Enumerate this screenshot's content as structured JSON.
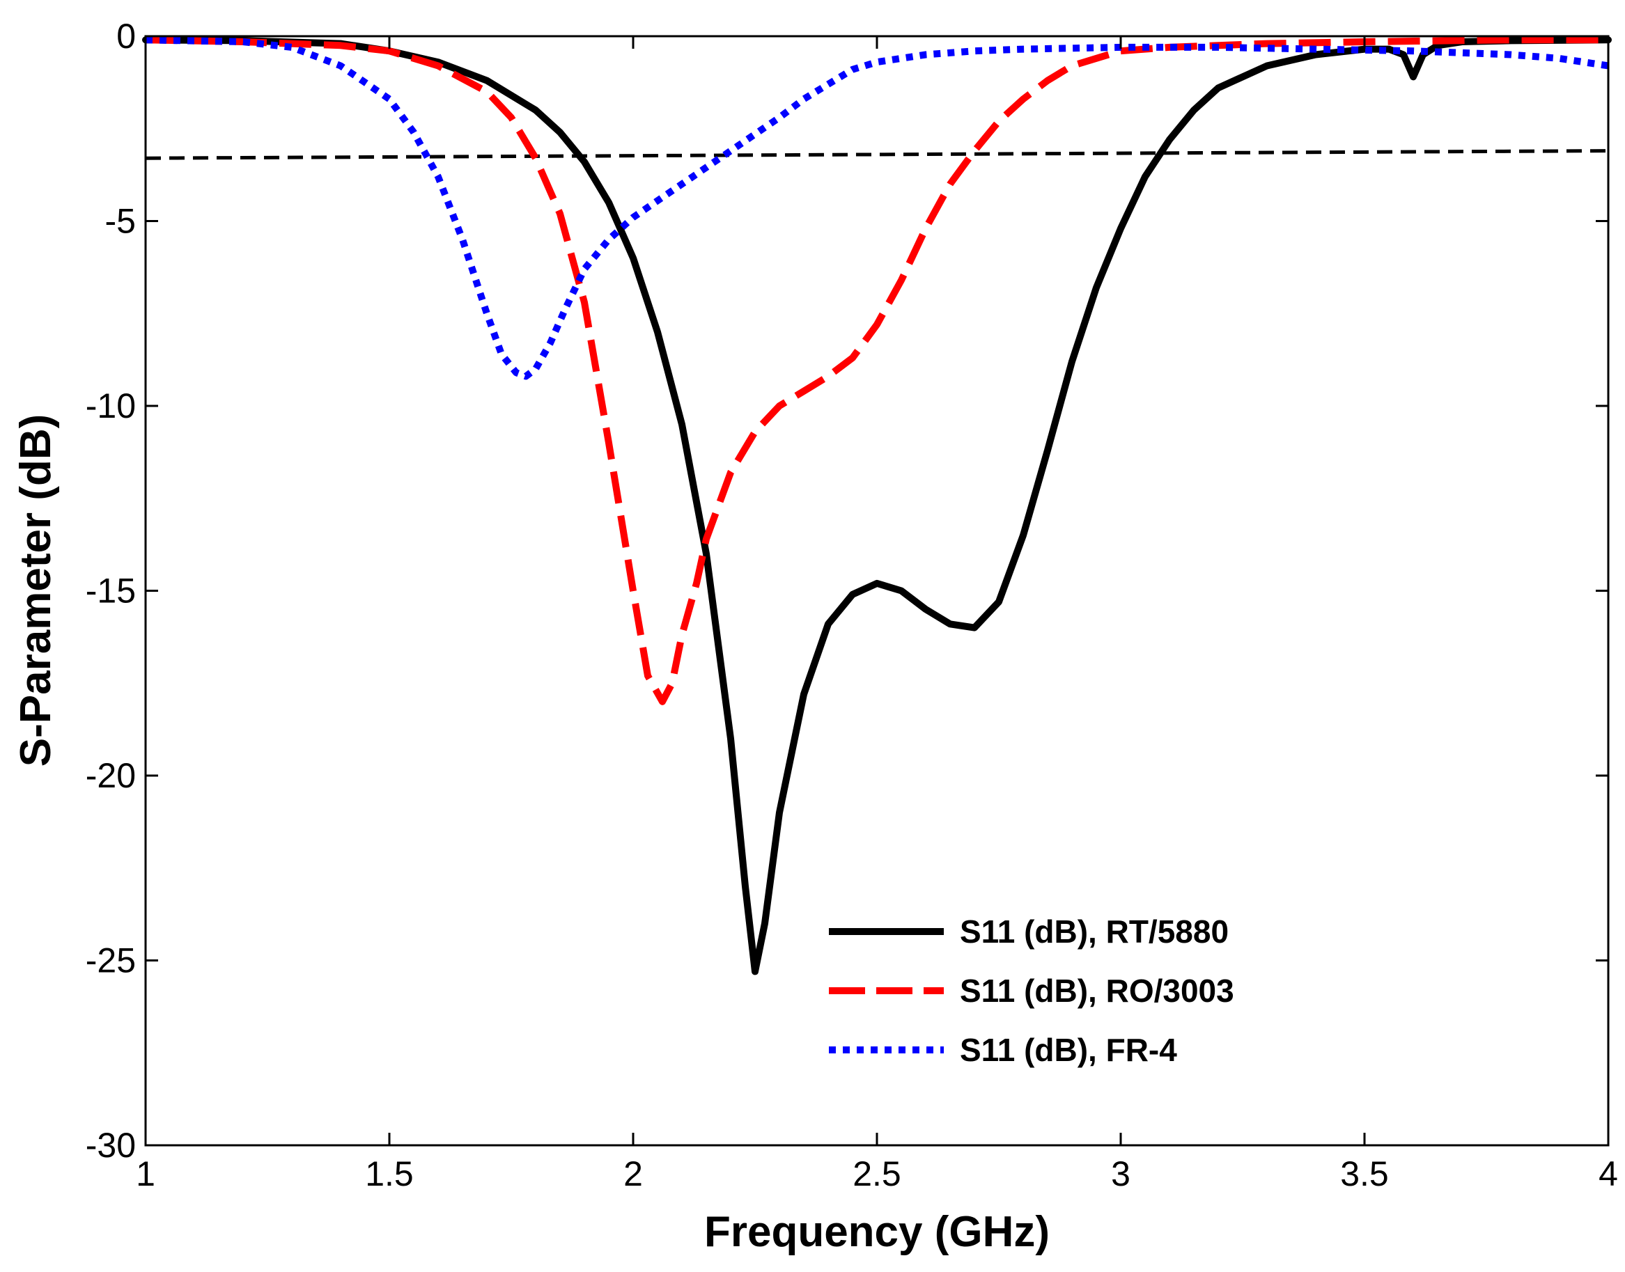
{
  "chart_data": {
    "type": "line",
    "title": "",
    "xlabel": "Frequency (GHz)",
    "ylabel": "S-Parameter (dB)",
    "xlim": [
      1,
      4
    ],
    "ylim": [
      -30,
      0
    ],
    "grid": false,
    "legend_position": "bottom-center",
    "x_ticks": [
      {
        "value": 1,
        "label": "1"
      },
      {
        "value": 1.5,
        "label": "1.5"
      },
      {
        "value": 2,
        "label": "2"
      },
      {
        "value": 2.5,
        "label": "2.5"
      },
      {
        "value": 3,
        "label": "3"
      },
      {
        "value": 3.5,
        "label": "3.5"
      },
      {
        "value": 4,
        "label": "4"
      }
    ],
    "y_ticks": [
      {
        "value": 0,
        "label": "0"
      },
      {
        "value": -5,
        "label": "-5"
      },
      {
        "value": -10,
        "label": "-10"
      },
      {
        "value": -15,
        "label": "-15"
      },
      {
        "value": -20,
        "label": "-20"
      },
      {
        "value": -25,
        "label": "-25"
      },
      {
        "value": -30,
        "label": "-30"
      }
    ],
    "series": [
      {
        "name": "S11 (dB), RT/5880",
        "color": "#000000",
        "style": "solid",
        "x": [
          1.0,
          1.2,
          1.4,
          1.5,
          1.6,
          1.7,
          1.8,
          1.85,
          1.9,
          1.95,
          2.0,
          2.05,
          2.1,
          2.15,
          2.2,
          2.23,
          2.25,
          2.27,
          2.3,
          2.35,
          2.4,
          2.45,
          2.5,
          2.55,
          2.6,
          2.65,
          2.7,
          2.75,
          2.8,
          2.85,
          2.9,
          2.95,
          3.0,
          3.05,
          3.1,
          3.15,
          3.2,
          3.3,
          3.4,
          3.5,
          3.55,
          3.58,
          3.6,
          3.62,
          3.65,
          3.7,
          3.8,
          4.0
        ],
        "y": [
          -0.1,
          -0.12,
          -0.2,
          -0.4,
          -0.7,
          -1.2,
          -2.0,
          -2.6,
          -3.4,
          -4.5,
          -6.0,
          -8.0,
          -10.5,
          -14.0,
          -19.0,
          -23.0,
          -25.3,
          -24.0,
          -21.0,
          -17.8,
          -15.9,
          -15.1,
          -14.8,
          -15.0,
          -15.5,
          -15.9,
          -16.0,
          -15.3,
          -13.5,
          -11.2,
          -8.8,
          -6.8,
          -5.2,
          -3.8,
          -2.8,
          -2.0,
          -1.4,
          -0.8,
          -0.5,
          -0.35,
          -0.35,
          -0.5,
          -1.1,
          -0.5,
          -0.25,
          -0.15,
          -0.12,
          -0.1
        ]
      },
      {
        "name": "S11 (dB), RO/3003",
        "color": "#ff0000",
        "style": "dashed",
        "x": [
          1.0,
          1.2,
          1.4,
          1.5,
          1.6,
          1.7,
          1.75,
          1.8,
          1.85,
          1.9,
          1.95,
          2.0,
          2.03,
          2.06,
          2.08,
          2.1,
          2.13,
          2.15,
          2.2,
          2.25,
          2.3,
          2.35,
          2.4,
          2.45,
          2.5,
          2.55,
          2.6,
          2.65,
          2.7,
          2.75,
          2.8,
          2.85,
          2.9,
          3.0,
          3.1,
          3.2,
          3.3,
          3.5,
          3.8,
          4.0
        ],
        "y": [
          -0.1,
          -0.15,
          -0.25,
          -0.4,
          -0.8,
          -1.5,
          -2.2,
          -3.3,
          -4.8,
          -7.2,
          -11.0,
          -15.0,
          -17.3,
          -18.0,
          -17.5,
          -16.2,
          -14.8,
          -13.6,
          -11.8,
          -10.7,
          -10.0,
          -9.6,
          -9.2,
          -8.7,
          -7.8,
          -6.6,
          -5.2,
          -4.0,
          -3.1,
          -2.3,
          -1.7,
          -1.2,
          -0.8,
          -0.4,
          -0.3,
          -0.25,
          -0.2,
          -0.15,
          -0.1,
          -0.1
        ]
      },
      {
        "name": "S11 (dB), FR-4",
        "color": "#0000ff",
        "style": "dotted",
        "x": [
          1.0,
          1.2,
          1.3,
          1.4,
          1.5,
          1.55,
          1.6,
          1.65,
          1.7,
          1.73,
          1.76,
          1.78,
          1.8,
          1.83,
          1.86,
          1.9,
          1.95,
          2.0,
          2.1,
          2.2,
          2.3,
          2.35,
          2.4,
          2.45,
          2.5,
          2.6,
          2.7,
          2.8,
          3.0,
          3.2,
          3.4,
          3.6,
          3.8,
          3.9,
          4.0
        ],
        "y": [
          -0.1,
          -0.15,
          -0.3,
          -0.8,
          -1.7,
          -2.6,
          -3.8,
          -5.5,
          -7.5,
          -8.6,
          -9.1,
          -9.2,
          -9.0,
          -8.3,
          -7.4,
          -6.3,
          -5.5,
          -4.9,
          -4.0,
          -3.1,
          -2.2,
          -1.7,
          -1.3,
          -0.9,
          -0.7,
          -0.5,
          -0.4,
          -0.35,
          -0.3,
          -0.3,
          -0.35,
          -0.4,
          -0.5,
          -0.6,
          -0.8
        ]
      },
      {
        "name": "",
        "color": "#000000",
        "style": "dashed-thin",
        "x": [
          1.0,
          4.0
        ],
        "y": [
          -3.3,
          -3.1
        ]
      }
    ],
    "legend": [
      {
        "label": "S11 (dB), RT/5880",
        "color": "#000000",
        "style": "solid"
      },
      {
        "label": "S11 (dB), RO/3003",
        "color": "#ff0000",
        "style": "dashed"
      },
      {
        "label": "S11 (dB), FR-4",
        "color": "#0000ff",
        "style": "dotted"
      }
    ]
  }
}
